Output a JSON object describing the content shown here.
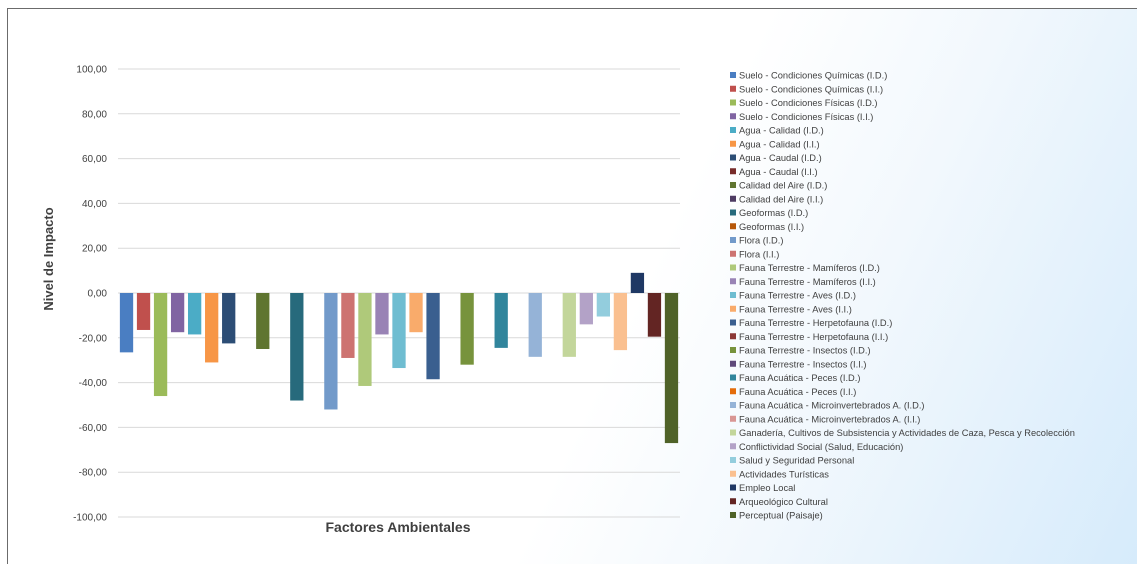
{
  "chart_data": {
    "type": "bar",
    "title": "",
    "xlabel": "Factores Ambientales",
    "ylabel": "Nivel de Impacto",
    "ylim": [
      -100,
      100
    ],
    "yticks": [
      "100,00",
      "80,00",
      "60,00",
      "40,00",
      "20,00",
      "0,00",
      "-20,00",
      "-40,00",
      "-60,00",
      "-80,00",
      "-100,00"
    ],
    "grid": true,
    "legend_position": "right",
    "series": [
      {
        "name": "Suelo - Condiciones Químicas (I.D.)",
        "color": "#4a7ec2",
        "value": -26.5
      },
      {
        "name": "Suelo - Condiciones Químicas (I.I.)",
        "color": "#c0504d",
        "value": -16.5
      },
      {
        "name": "Suelo - Condiciones Físicas (I.D.)",
        "color": "#9bbb59",
        "value": -46
      },
      {
        "name": "Suelo - Condiciones Físicas (I.I.)",
        "color": "#8064a2",
        "value": -17.5
      },
      {
        "name": "Agua - Calidad (I.D.)",
        "color": "#4bacc6",
        "value": -18.5
      },
      {
        "name": "Agua - Calidad (I.I.)",
        "color": "#f79646",
        "value": -31
      },
      {
        "name": "Agua - Caudal (I.D.)",
        "color": "#2c4d75",
        "value": -22.5
      },
      {
        "name": "Agua - Caudal (I.I.)",
        "color": "#772c2a",
        "value": null
      },
      {
        "name": "Calidad del Aire (I.D.)",
        "color": "#5f7530",
        "value": -25
      },
      {
        "name": "Calidad del Aire (I.I.)",
        "color": "#4d3b62",
        "value": null
      },
      {
        "name": "Geoformas (I.D.)",
        "color": "#276a7c",
        "value": -48
      },
      {
        "name": "Geoformas (I.I.)",
        "color": "#b65708",
        "value": null
      },
      {
        "name": "Flora (I.D.)",
        "color": "#729aca",
        "value": -52
      },
      {
        "name": "Flora (I.I.)",
        "color": "#cd7371",
        "value": -29
      },
      {
        "name": "Fauna Terrestre - Mamíferos (I.D.)",
        "color": "#afc97a",
        "value": -41.5
      },
      {
        "name": "Fauna Terrestre - Mamíferos (I.I.)",
        "color": "#9983b5",
        "value": -18.5
      },
      {
        "name": "Fauna Terrestre - Aves (I.D.)",
        "color": "#6fbdd1",
        "value": -33.5
      },
      {
        "name": "Fauna Terrestre - Aves (I.I.)",
        "color": "#f9ab6b",
        "value": -17.5
      },
      {
        "name": "Fauna Terrestre - Herpetofauna (I.D.)",
        "color": "#3a5f8f",
        "value": -38.5
      },
      {
        "name": "Fauna Terrestre - Herpetofauna (I.I.)",
        "color": "#8c3836",
        "value": null
      },
      {
        "name": "Fauna Terrestre - Insectos (I.D.)",
        "color": "#77933c",
        "value": -32
      },
      {
        "name": "Fauna Terrestre - Insectos (I.I.)",
        "color": "#5f497a",
        "value": null
      },
      {
        "name": "Fauna Acuática - Peces (I.D.)",
        "color": "#31859c",
        "value": -24.5
      },
      {
        "name": "Fauna Acuática - Peces (I.I.)",
        "color": "#e46c0a",
        "value": null
      },
      {
        "name": "Fauna Acuática - Microinvertebrados A. (I.D.)",
        "color": "#95b3d7",
        "value": -28.5
      },
      {
        "name": "Fauna Acuática - Microinvertebrados A. (I.I.)",
        "color": "#d99694",
        "value": null
      },
      {
        "name": "Ganadería, Cultivos de Subsistencia y Actividades de Caza, Pesca y Recolección",
        "color": "#c3d69b",
        "value": -28.5
      },
      {
        "name": "Conflictividad Social (Salud, Educación)",
        "color": "#b3a2c7",
        "value": -14
      },
      {
        "name": "Salud y Seguridad Personal",
        "color": "#93cddd",
        "value": -10.5
      },
      {
        "name": "Actividades Turísticas",
        "color": "#fac090",
        "value": -25.5
      },
      {
        "name": "Empleo Local",
        "color": "#1f3864",
        "value": 9
      },
      {
        "name": "Arqueológico Cultural",
        "color": "#632523",
        "value": -19.5
      },
      {
        "name": "Perceptual (Paisaje)",
        "color": "#4f6228",
        "value": -67
      }
    ]
  }
}
